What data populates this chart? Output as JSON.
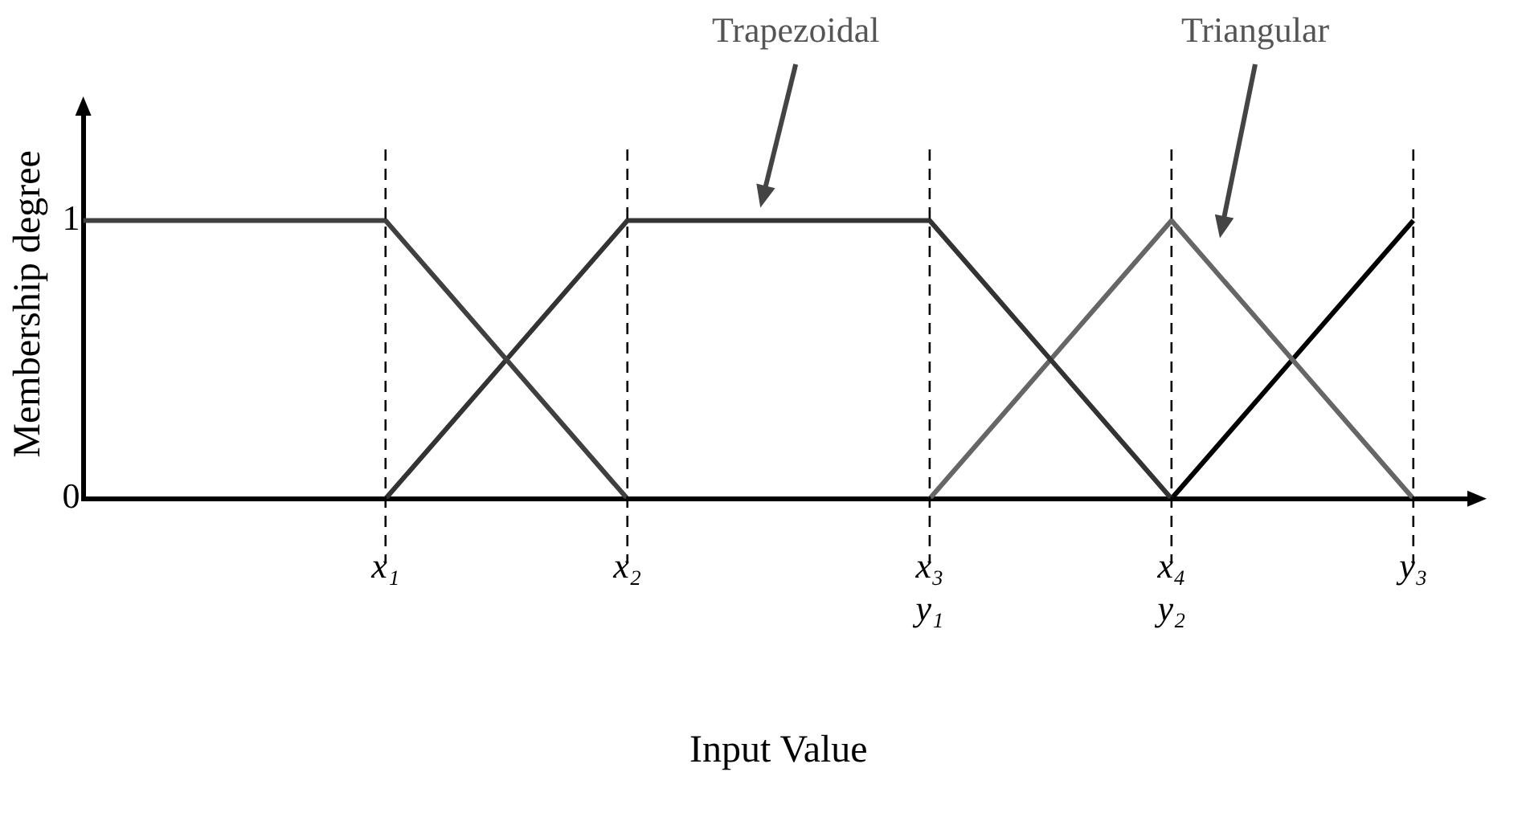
{
  "chart_data": {
    "type": "line",
    "xlabel": "Input Value",
    "ylabel": "Membership degree",
    "categories": [
      null,
      null,
      null,
      null,
      null,
      "x₁",
      null,
      null,
      null,
      "x₂",
      null,
      null,
      null,
      null,
      "x₃\ny₁",
      null,
      null,
      null,
      "x₄\ny₂",
      null,
      null,
      null,
      "y₃",
      null
    ],
    "ylim": [
      0,
      1.4
    ],
    "yticks": [
      0,
      1
    ],
    "series": [
      {
        "color": "#404040",
        "values": [
          1,
          1,
          1,
          1,
          1,
          1,
          0.75,
          0.5,
          0.25,
          0,
          null,
          null,
          null,
          null,
          null,
          null,
          null,
          null,
          null,
          null,
          null,
          null,
          null,
          null
        ]
      },
      {
        "color": "#333333",
        "values": [
          null,
          null,
          null,
          null,
          null,
          0,
          0.25,
          0.5,
          0.75,
          1,
          1,
          1,
          1,
          1,
          1,
          0.75,
          0.5,
          0.25,
          0,
          null,
          null,
          null,
          null,
          null
        ]
      },
      {
        "color": "#666666",
        "values": [
          null,
          null,
          null,
          null,
          null,
          null,
          null,
          null,
          null,
          null,
          null,
          null,
          null,
          null,
          0,
          0.25,
          0.5,
          0.75,
          1,
          0.75,
          0.5,
          0.25,
          0,
          null
        ]
      },
      {
        "color": "#000000",
        "values": [
          null,
          null,
          null,
          null,
          null,
          null,
          null,
          null,
          null,
          null,
          null,
          null,
          null,
          null,
          null,
          null,
          null,
          null,
          0,
          0.25,
          0.5,
          0.75,
          1,
          null
        ]
      }
    ],
    "ref_lines": [
      {
        "axis": "x",
        "value": "x₁",
        "color": "#000000",
        "line_style": "dashed"
      },
      {
        "axis": "x",
        "value": "x₂",
        "color": "#000000",
        "line_style": "dashed"
      },
      {
        "axis": "x",
        "value": "x₃\ny₁",
        "color": "#000000",
        "line_style": "dashed"
      },
      {
        "axis": "x",
        "value": "x₄\ny₂",
        "color": "#000000",
        "line_style": "dashed"
      },
      {
        "axis": "x",
        "value": "y₃",
        "color": "#000000",
        "line_style": "dashed"
      }
    ],
    "annotations": [
      "Trapezoidal",
      "Triangular"
    ],
    "grid": false,
    "legend": false,
    "marker": "none",
    "line_style": "solid"
  }
}
